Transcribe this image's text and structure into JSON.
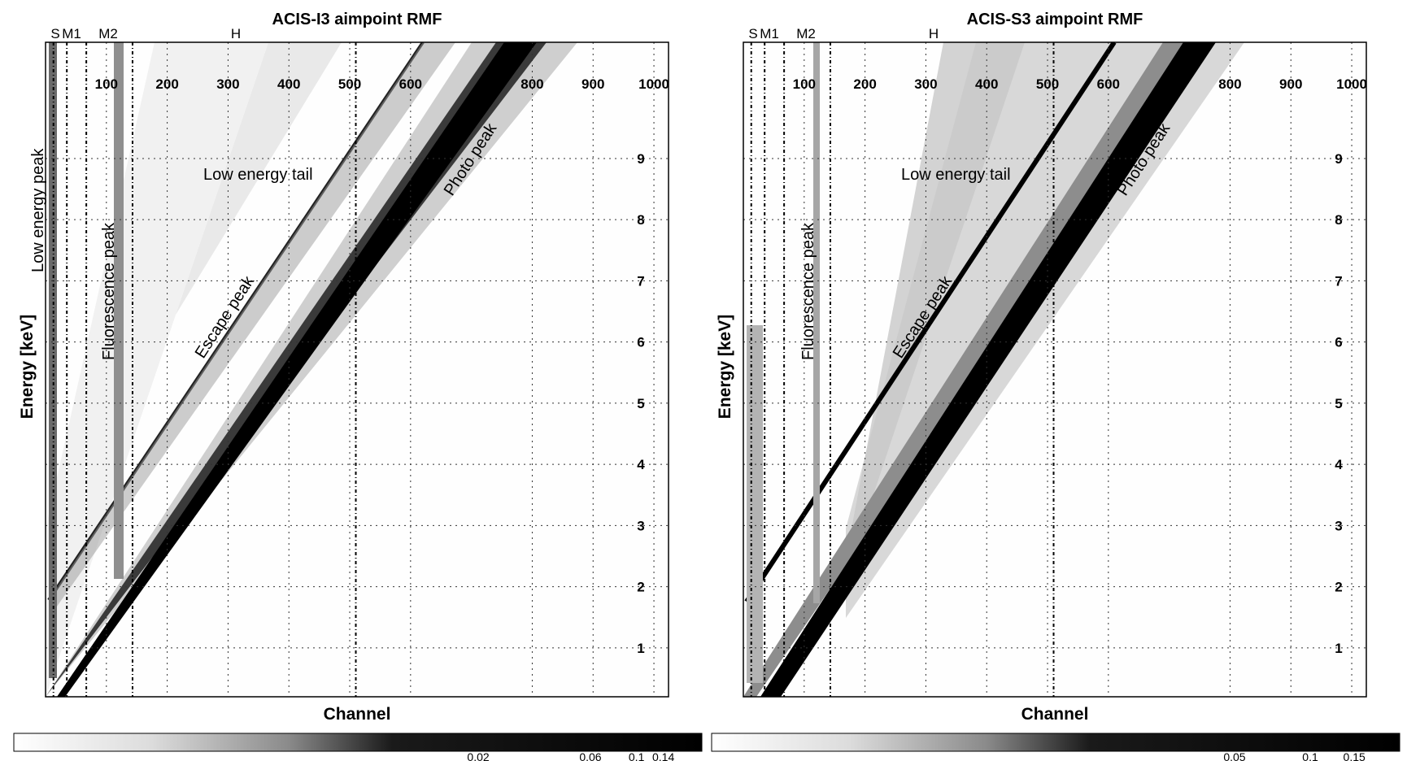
{
  "chart_data": [
    {
      "type": "heatmap",
      "title": "ACIS-I3 aimpoint RMF",
      "xlabel": "Channel",
      "ylabel": "Energy [keV]",
      "x_ticks": [
        "100",
        "200",
        "300",
        "400",
        "500",
        "600",
        "800",
        "900",
        "1000"
      ],
      "y_ticks": [
        "1",
        "2",
        "3",
        "4",
        "5",
        "6",
        "7",
        "8",
        "9"
      ],
      "grade_marks": [
        "S",
        "M1",
        "M2",
        "H"
      ],
      "annotations": [
        "Low energy peak",
        "Fluorescence peak",
        "Low energy tail",
        "Escape peak",
        "Photo peak"
      ],
      "colorbar_ticks": [
        "0.02",
        "0.06",
        "0.1",
        "0.14"
      ],
      "xlim": [
        0,
        1024
      ],
      "ylim": [
        0.2,
        10.9
      ],
      "grid": true,
      "features": {
        "photo_peak": {
          "x": [
            0,
            820
          ],
          "y": [
            0.2,
            10.9
          ]
        },
        "escape_peak_knee_energy": 1.84,
        "fluorescence_peak_channel": 120,
        "grade_channels": [
          13,
          35,
          67,
          143,
          510
        ]
      }
    },
    {
      "type": "heatmap",
      "title": "ACIS-S3 aimpoint RMF",
      "xlabel": "Channel",
      "ylabel": "Energy [keV]",
      "x_ticks": [
        "100",
        "200",
        "300",
        "400",
        "500",
        "600",
        "800",
        "900",
        "1000"
      ],
      "y_ticks": [
        "1",
        "2",
        "3",
        "4",
        "5",
        "6",
        "7",
        "8",
        "9"
      ],
      "grade_marks": [
        "S",
        "M1",
        "M2",
        "H"
      ],
      "annotations": [
        "Low energy peak",
        "Fluorescence peak",
        "Low energy tail",
        "Escape peak",
        "Photo peak"
      ],
      "colorbar_ticks": [
        "0.05",
        "0.1",
        "0.15"
      ],
      "xlim": [
        0,
        1024
      ],
      "ylim": [
        0.2,
        10.9
      ],
      "grid": true,
      "features": {
        "photo_peak": {
          "x": [
            0,
            770
          ],
          "y": [
            0.2,
            10.9
          ]
        },
        "escape_peak_knee_energy": 1.84,
        "fluorescence_peak_channel": 120,
        "grade_channels": [
          13,
          35,
          67,
          143,
          510
        ]
      }
    }
  ]
}
